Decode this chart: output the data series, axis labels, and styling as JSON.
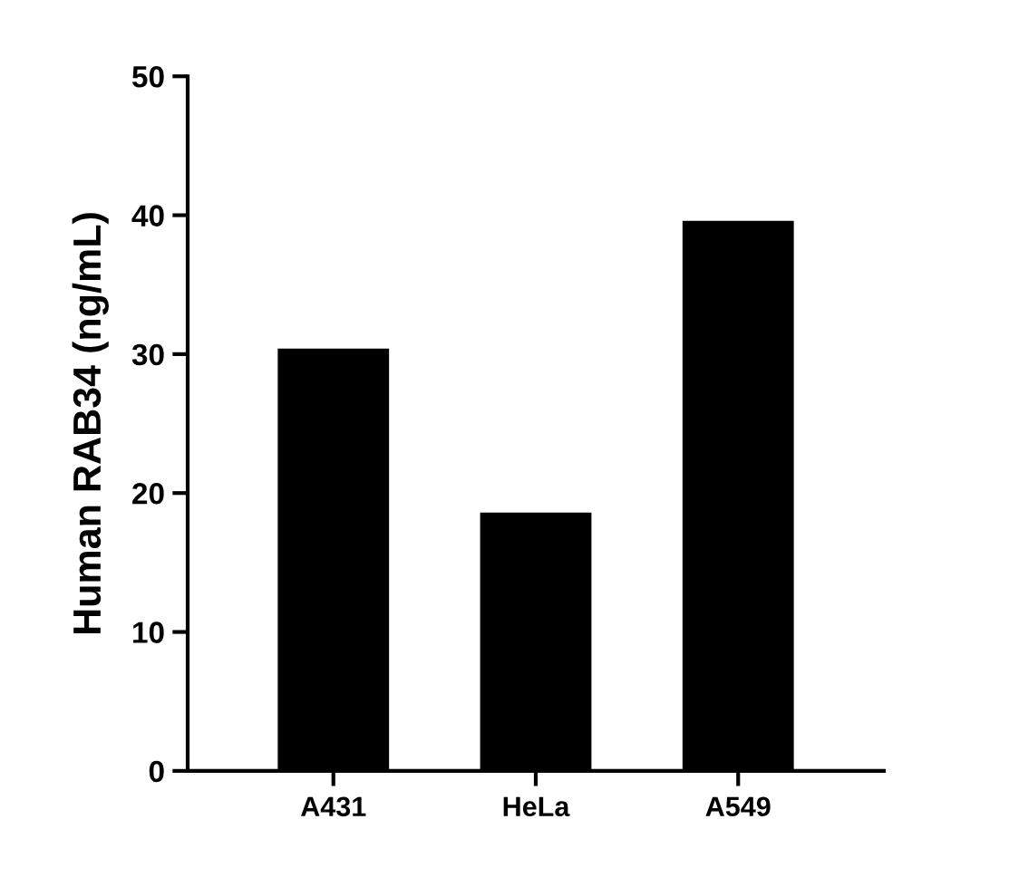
{
  "chart_data": {
    "type": "bar",
    "ylabel": "Human RAB34 (ng/mL)",
    "categories": [
      "A431",
      "HeLa",
      "A549"
    ],
    "values": [
      30.4,
      18.6,
      39.6
    ],
    "color": "#000000",
    "ylim": [
      0,
      50
    ],
    "yticks": [
      0,
      10,
      20,
      30,
      40,
      50
    ],
    "grid": false,
    "legend": false
  }
}
